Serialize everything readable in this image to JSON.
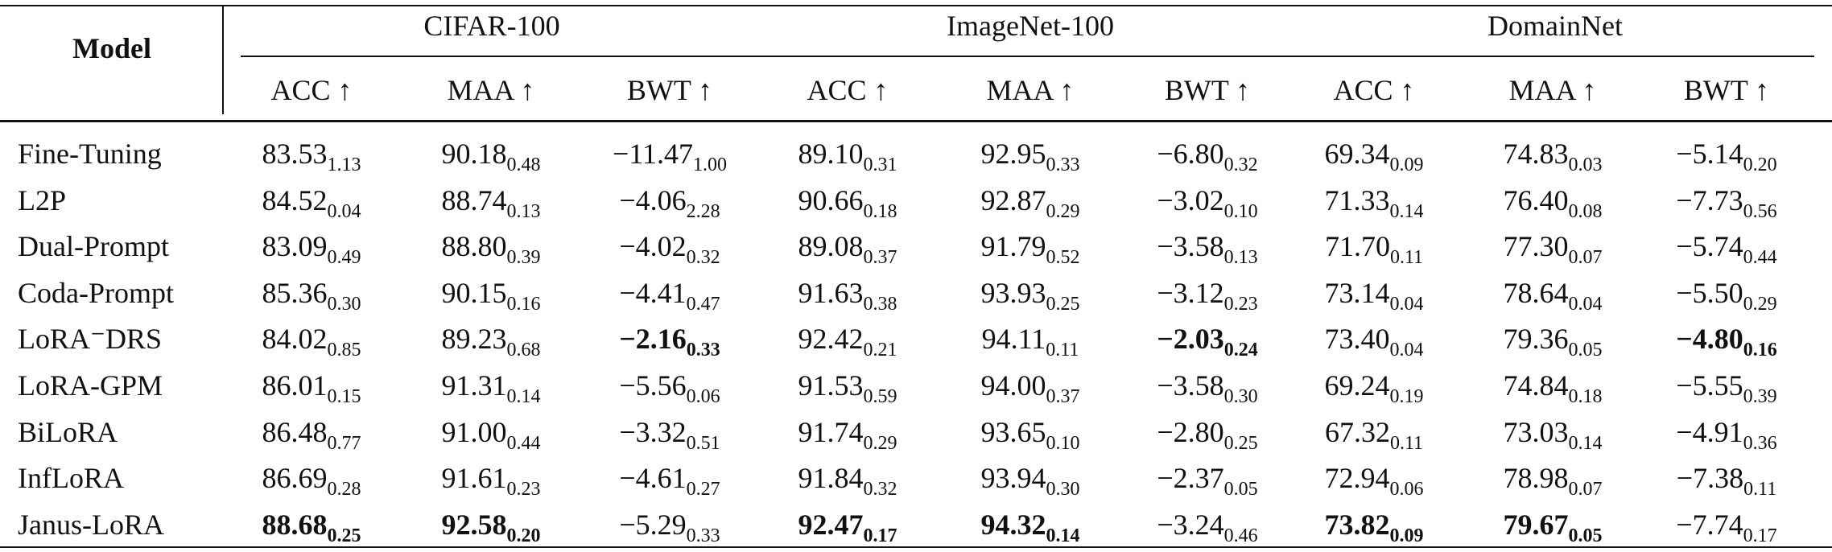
{
  "table": {
    "header": {
      "model": "Model",
      "groups": [
        "CIFAR-100",
        "ImageNet-100",
        "DomainNet"
      ],
      "metrics": [
        "ACC ↑",
        "MAA ↑",
        "BWT ↑",
        "ACC ↑",
        "MAA ↑",
        "BWT ↑",
        "ACC ↑",
        "MAA ↑",
        "BWT ↑"
      ]
    },
    "rows": [
      {
        "model": "Fine-Tuning",
        "cells": [
          {
            "value": "83.53",
            "std": "1.13"
          },
          {
            "value": "90.18",
            "std": "0.48"
          },
          {
            "value": "−11.47",
            "std": "1.00"
          },
          {
            "value": "89.10",
            "std": "0.31"
          },
          {
            "value": "92.95",
            "std": "0.33"
          },
          {
            "value": "−6.80",
            "std": "0.32"
          },
          {
            "value": "69.34",
            "std": "0.09"
          },
          {
            "value": "74.83",
            "std": "0.03"
          },
          {
            "value": "−5.14",
            "std": "0.20"
          }
        ]
      },
      {
        "model": "L2P",
        "cells": [
          {
            "value": "84.52",
            "std": "0.04"
          },
          {
            "value": "88.74",
            "std": "0.13"
          },
          {
            "value": "−4.06",
            "std": "2.28"
          },
          {
            "value": "90.66",
            "std": "0.18"
          },
          {
            "value": "92.87",
            "std": "0.29"
          },
          {
            "value": "−3.02",
            "std": "0.10"
          },
          {
            "value": "71.33",
            "std": "0.14"
          },
          {
            "value": "76.40",
            "std": "0.08"
          },
          {
            "value": "−7.73",
            "std": "0.56"
          }
        ]
      },
      {
        "model": "Dual-Prompt",
        "cells": [
          {
            "value": "83.09",
            "std": "0.49"
          },
          {
            "value": "88.80",
            "std": "0.39"
          },
          {
            "value": "−4.02",
            "std": "0.32"
          },
          {
            "value": "89.08",
            "std": "0.37"
          },
          {
            "value": "91.79",
            "std": "0.52"
          },
          {
            "value": "−3.58",
            "std": "0.13"
          },
          {
            "value": "71.70",
            "std": "0.11"
          },
          {
            "value": "77.30",
            "std": "0.07"
          },
          {
            "value": "−5.74",
            "std": "0.44"
          }
        ]
      },
      {
        "model": "Coda-Prompt",
        "cells": [
          {
            "value": "85.36",
            "std": "0.30"
          },
          {
            "value": "90.15",
            "std": "0.16"
          },
          {
            "value": "−4.41",
            "std": "0.47"
          },
          {
            "value": "91.63",
            "std": "0.38"
          },
          {
            "value": "93.93",
            "std": "0.25"
          },
          {
            "value": "−3.12",
            "std": "0.23"
          },
          {
            "value": "73.14",
            "std": "0.04"
          },
          {
            "value": "78.64",
            "std": "0.04"
          },
          {
            "value": "−5.50",
            "std": "0.29"
          }
        ]
      },
      {
        "model": "LoRA⁻DRS",
        "cells": [
          {
            "value": "84.02",
            "std": "0.85"
          },
          {
            "value": "89.23",
            "std": "0.68"
          },
          {
            "value": "−2.16",
            "std": "0.33",
            "bold": true
          },
          {
            "value": "92.42",
            "std": "0.21"
          },
          {
            "value": "94.11",
            "std": "0.11"
          },
          {
            "value": "−2.03",
            "std": "0.24",
            "bold": true
          },
          {
            "value": "73.40",
            "std": "0.04"
          },
          {
            "value": "79.36",
            "std": "0.05"
          },
          {
            "value": "−4.80",
            "std": "0.16",
            "bold": true
          }
        ]
      },
      {
        "model": "LoRA-GPM",
        "cells": [
          {
            "value": "86.01",
            "std": "0.15"
          },
          {
            "value": "91.31",
            "std": "0.14"
          },
          {
            "value": "−5.56",
            "std": "0.06"
          },
          {
            "value": "91.53",
            "std": "0.59"
          },
          {
            "value": "94.00",
            "std": "0.37"
          },
          {
            "value": "−3.58",
            "std": "0.30"
          },
          {
            "value": "69.24",
            "std": "0.19"
          },
          {
            "value": "74.84",
            "std": "0.18"
          },
          {
            "value": "−5.55",
            "std": "0.39"
          }
        ]
      },
      {
        "model": "BiLoRA",
        "cells": [
          {
            "value": "86.48",
            "std": "0.77"
          },
          {
            "value": "91.00",
            "std": "0.44"
          },
          {
            "value": "−3.32",
            "std": "0.51"
          },
          {
            "value": "91.74",
            "std": "0.29"
          },
          {
            "value": "93.65",
            "std": "0.10"
          },
          {
            "value": "−2.80",
            "std": "0.25"
          },
          {
            "value": "67.32",
            "std": "0.11"
          },
          {
            "value": "73.03",
            "std": "0.14"
          },
          {
            "value": "−4.91",
            "std": "0.36"
          }
        ]
      },
      {
        "model": "InfLoRA",
        "cells": [
          {
            "value": "86.69",
            "std": "0.28"
          },
          {
            "value": "91.61",
            "std": "0.23"
          },
          {
            "value": "−4.61",
            "std": "0.27"
          },
          {
            "value": "91.84",
            "std": "0.32"
          },
          {
            "value": "93.94",
            "std": "0.30"
          },
          {
            "value": "−2.37",
            "std": "0.05"
          },
          {
            "value": "72.94",
            "std": "0.06"
          },
          {
            "value": "78.98",
            "std": "0.07"
          },
          {
            "value": "−7.38",
            "std": "0.11"
          }
        ]
      },
      {
        "model": "Janus-LoRA",
        "cells": [
          {
            "value": "88.68",
            "std": "0.25",
            "bold": true
          },
          {
            "value": "92.58",
            "std": "0.20",
            "bold": true
          },
          {
            "value": "−5.29",
            "std": "0.33"
          },
          {
            "value": "92.47",
            "std": "0.17",
            "bold": true
          },
          {
            "value": "94.32",
            "std": "0.14",
            "bold": true
          },
          {
            "value": "−3.24",
            "std": "0.46"
          },
          {
            "value": "73.82",
            "std": "0.09",
            "bold": true
          },
          {
            "value": "79.67",
            "std": "0.05",
            "bold": true
          },
          {
            "value": "−7.74",
            "std": "0.17"
          }
        ]
      }
    ]
  }
}
